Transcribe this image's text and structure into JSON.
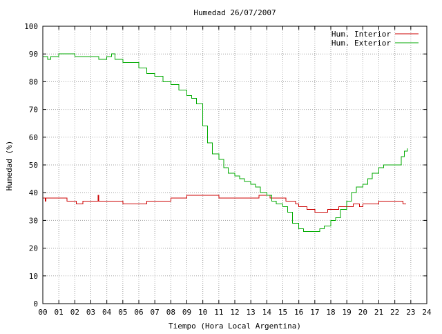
{
  "chart_data": {
    "type": "line",
    "title": "Humedad 26/07/2007",
    "xlabel": "Tiempo (Hora Local Argentina)",
    "ylabel": "Humedad (%)",
    "xlim": [
      0,
      24
    ],
    "ylim": [
      0,
      100
    ],
    "x_ticks": [
      0,
      1,
      2,
      3,
      4,
      5,
      6,
      7,
      8,
      9,
      10,
      11,
      12,
      13,
      14,
      15,
      16,
      17,
      18,
      19,
      20,
      21,
      22,
      23,
      24
    ],
    "x_tick_labels": [
      "00",
      "01",
      "02",
      "03",
      "04",
      "05",
      "06",
      "07",
      "08",
      "09",
      "10",
      "11",
      "12",
      "13",
      "14",
      "15",
      "16",
      "17",
      "18",
      "19",
      "20",
      "21",
      "22",
      "23",
      "24"
    ],
    "y_ticks": [
      0,
      10,
      20,
      30,
      40,
      50,
      60,
      70,
      80,
      90,
      100
    ],
    "y_tick_labels": [
      "0",
      "10",
      "20",
      "30",
      "40",
      "50",
      "60",
      "70",
      "80",
      "90",
      "100"
    ],
    "grid": true,
    "legend_position": "top-right",
    "series": [
      {
        "name": "Hum. Interior",
        "color": "#cc0000",
        "x": [
          0.0,
          0.15,
          0.2,
          0.25,
          1.5,
          2.0,
          2.1,
          2.5,
          3.0,
          3.4,
          3.45,
          3.5,
          4.0,
          4.3,
          5.0,
          5.5,
          6.0,
          6.5,
          7.0,
          7.5,
          8.0,
          8.5,
          9.0,
          9.5,
          10.0,
          10.5,
          11.0,
          11.5,
          12.0,
          12.5,
          13.0,
          13.5,
          14.0,
          14.2,
          14.5,
          15.0,
          15.2,
          15.5,
          15.8,
          16.0,
          16.3,
          16.5,
          16.7,
          17.0,
          17.5,
          17.8,
          18.0,
          18.5,
          19.0,
          19.4,
          19.8,
          20.0,
          20.5,
          21.0,
          21.5,
          22.0,
          22.3,
          22.5,
          22.7
        ],
        "y": [
          38,
          37,
          38,
          38,
          37,
          37,
          36,
          37,
          37,
          37,
          39,
          37,
          37,
          37,
          36,
          36,
          36,
          37,
          37,
          37,
          38,
          38,
          39,
          39,
          39,
          39,
          38,
          38,
          38,
          38,
          38,
          39,
          39,
          38,
          38,
          38,
          37,
          37,
          36,
          35,
          35,
          34,
          34,
          33,
          33,
          34,
          34,
          35,
          35,
          36,
          35,
          36,
          36,
          37,
          37,
          37,
          37,
          36,
          36
        ]
      },
      {
        "name": "Hum. Exterior",
        "color": "#00aa00",
        "x": [
          0.0,
          0.2,
          0.3,
          0.5,
          1.0,
          1.5,
          2.0,
          2.5,
          3.0,
          3.5,
          4.0,
          4.3,
          4.5,
          5.0,
          5.5,
          6.0,
          6.5,
          7.0,
          7.5,
          8.0,
          8.5,
          9.0,
          9.3,
          9.6,
          10.0,
          10.3,
          10.6,
          11.0,
          11.3,
          11.6,
          12.0,
          12.3,
          12.6,
          13.0,
          13.3,
          13.6,
          14.0,
          14.3,
          14.6,
          15.0,
          15.3,
          15.6,
          16.0,
          16.3,
          16.6,
          17.0,
          17.3,
          17.6,
          18.0,
          18.3,
          18.6,
          19.0,
          19.3,
          19.6,
          20.0,
          20.3,
          20.6,
          21.0,
          21.3,
          21.6,
          22.0,
          22.2,
          22.4,
          22.6,
          22.8
        ],
        "y": [
          89,
          89,
          88,
          89,
          90,
          90,
          89,
          89,
          89,
          88,
          89,
          90,
          88,
          87,
          87,
          85,
          83,
          82,
          80,
          79,
          77,
          75,
          74,
          72,
          64,
          58,
          54,
          52,
          49,
          47,
          46,
          45,
          44,
          43,
          42,
          40,
          39,
          37,
          36,
          35,
          33,
          29,
          27,
          26,
          26,
          26,
          27,
          28,
          30,
          31,
          34,
          37,
          40,
          42,
          43,
          45,
          47,
          49,
          50,
          50,
          50,
          50,
          53,
          55,
          56
        ]
      }
    ]
  }
}
